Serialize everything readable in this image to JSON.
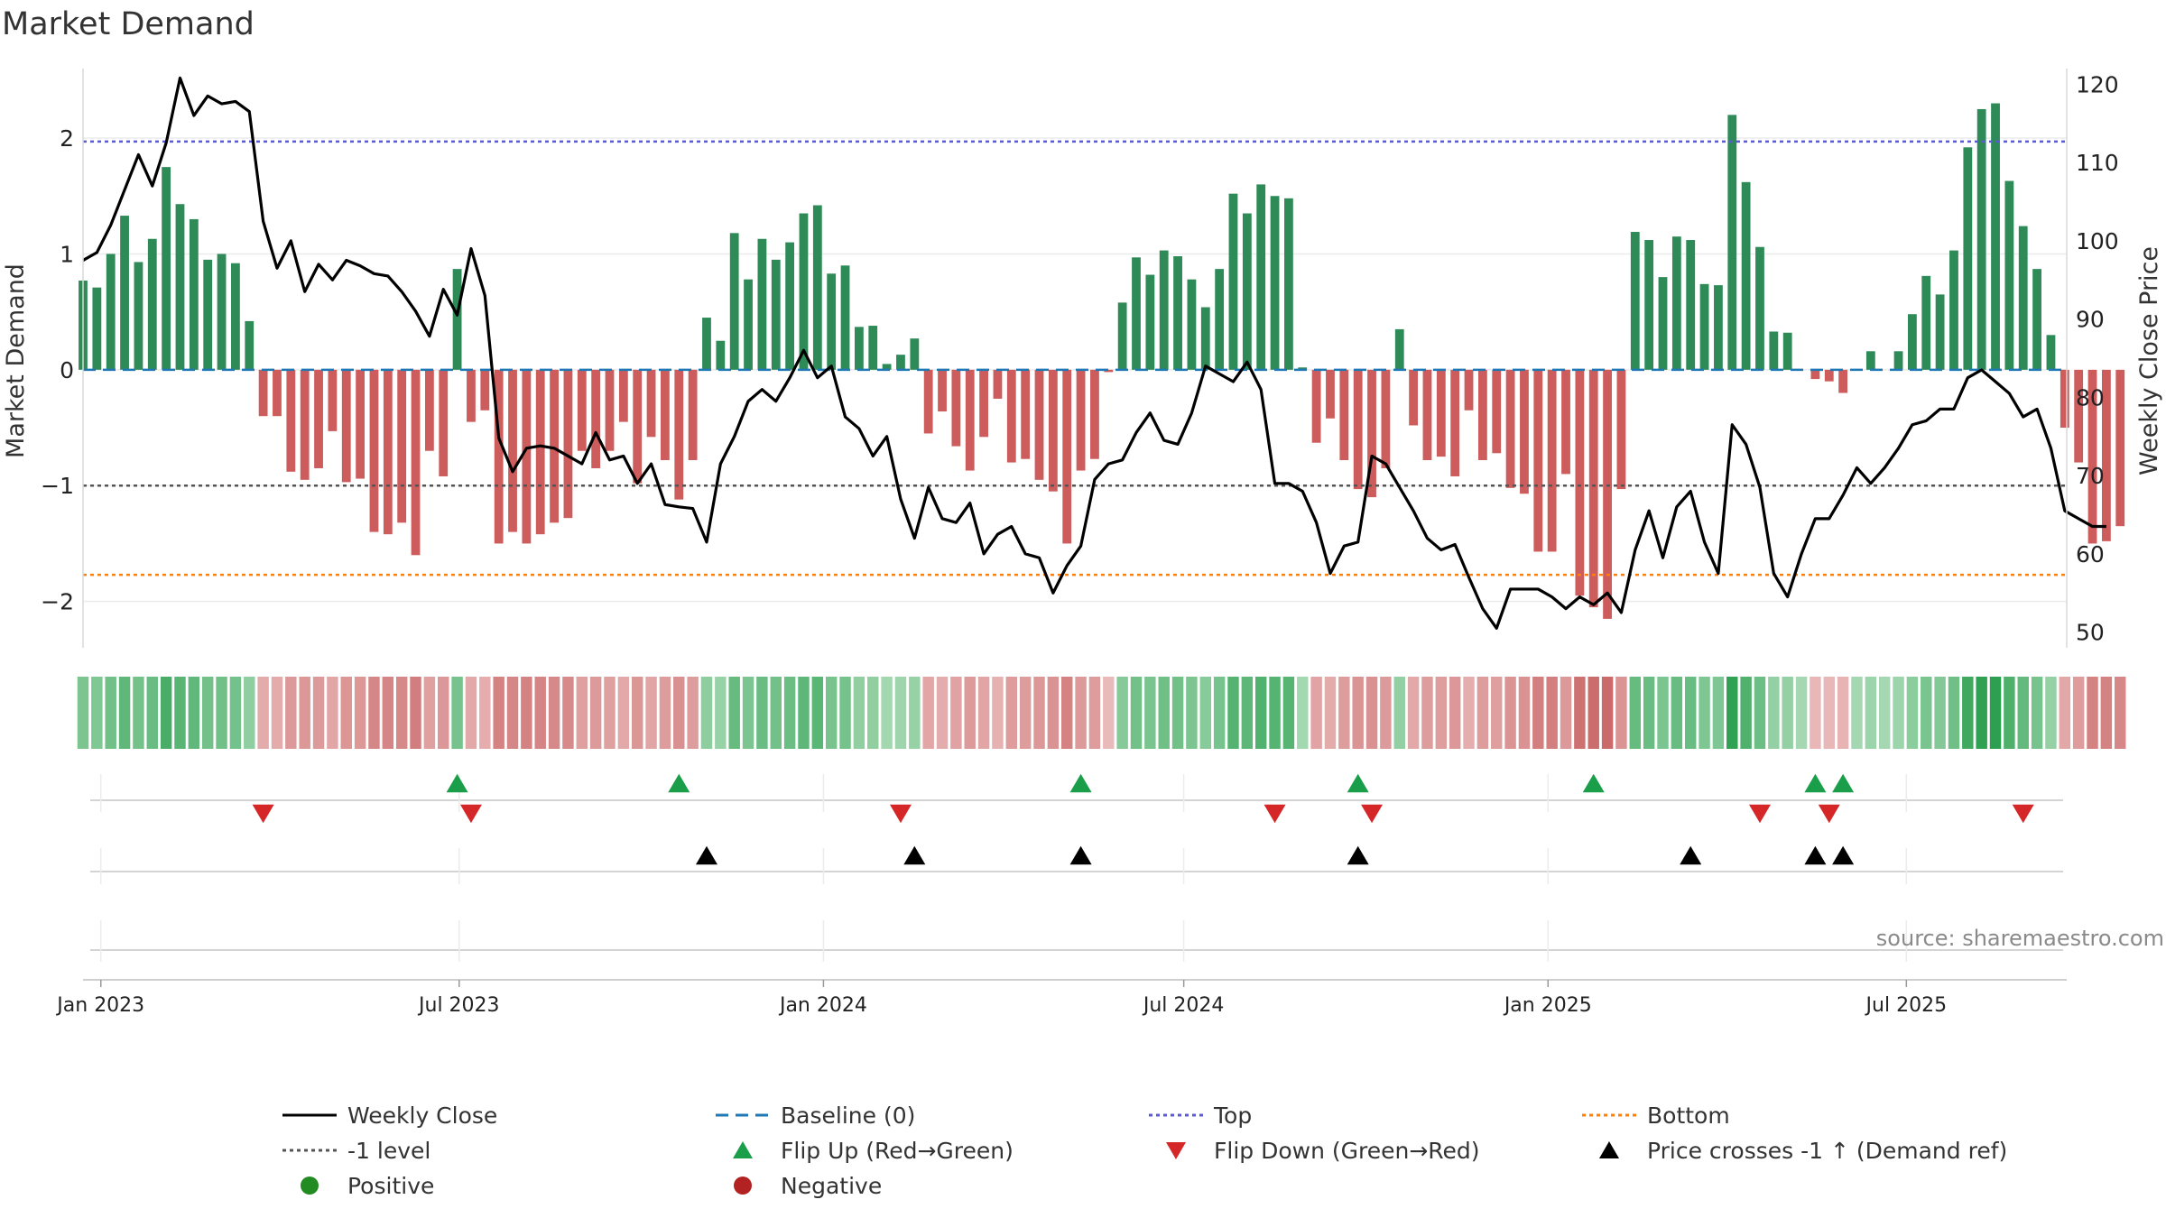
{
  "page_title": "Market Demand",
  "source": "source: sharemaestro.com",
  "colors": {
    "positive_bar": "#2e8b57",
    "negative_bar": "#cd5c5c",
    "close_line": "#000000",
    "baseline": "#1f77b4",
    "top_line": "#5b5bd6",
    "minus_one_line": "#555555",
    "bottom_line": "#ff7f0e",
    "flip_up": "#1a9e4a",
    "flip_down": "#d62728",
    "cross_marker": "#000000"
  },
  "chart_data": {
    "type": "bar",
    "title": "Market Demand",
    "ylabel": "Market Demand",
    "ylabel_right": "Weekly Close Price",
    "ylim": [
      -2.4,
      2.6
    ],
    "ylim_right": [
      48,
      122
    ],
    "y_ticks": [
      -2,
      -1,
      0,
      1,
      2
    ],
    "y_tick_labels": [
      "−2",
      "−1",
      "0",
      "1",
      "2"
    ],
    "y_ticks_right": [
      50,
      60,
      70,
      80,
      90,
      100,
      110,
      120
    ],
    "y_tick_labels_right": [
      "50",
      "60",
      "70",
      "80",
      "90",
      "100",
      "110",
      "120"
    ],
    "reference_lines": {
      "top": 1.97,
      "minus_one": -1.0,
      "bottom": -1.77,
      "baseline": 0
    },
    "x_start": "2022-12-23",
    "x_week_step": 7,
    "x_end": "2025-09-20",
    "x_tick_dates": [
      "2023-01-01",
      "2023-07-01",
      "2024-01-01",
      "2024-07-01",
      "2025-01-01",
      "2025-07-01"
    ],
    "x_tick_labels": [
      "Jan 2023",
      "Jul 2023",
      "Jan 2024",
      "Jul 2024",
      "Jan 2025",
      "Jul 2025"
    ],
    "demand": [
      0.77,
      0.71,
      1.0,
      1.33,
      0.93,
      1.13,
      1.75,
      1.43,
      1.3,
      0.95,
      1.0,
      0.92,
      0.42,
      -0.4,
      -0.4,
      -0.88,
      -0.95,
      -0.85,
      -0.53,
      -0.97,
      -0.94,
      -1.4,
      -1.42,
      -1.32,
      -1.6,
      -0.7,
      -0.92,
      0.87,
      -0.45,
      -0.35,
      -1.5,
      -1.4,
      -1.5,
      -1.42,
      -1.32,
      -1.28,
      -0.7,
      -0.85,
      -0.7,
      -0.45,
      -0.98,
      -0.58,
      -0.78,
      -1.12,
      -0.78,
      0.45,
      0.25,
      1.18,
      0.78,
      1.13,
      0.95,
      1.1,
      1.35,
      1.42,
      0.83,
      0.9,
      0.37,
      0.38,
      0.05,
      0.13,
      0.27,
      -0.55,
      -0.36,
      -0.66,
      -0.87,
      -0.58,
      -0.25,
      -0.8,
      -0.77,
      -0.95,
      -1.05,
      -1.5,
      -0.87,
      -0.77,
      -0.02,
      0.58,
      0.97,
      0.82,
      1.03,
      0.98,
      0.78,
      0.54,
      0.87,
      1.52,
      1.35,
      1.6,
      1.5,
      1.48,
      0.02,
      -0.63,
      -0.42,
      -0.78,
      -1.03,
      -1.1,
      -0.85,
      0.35,
      -0.48,
      -0.78,
      -0.75,
      -0.92,
      -0.35,
      -0.78,
      -0.72,
      -1.02,
      -1.07,
      -1.57,
      -1.57,
      -0.9,
      -1.95,
      -2.05,
      -2.15,
      -1.03,
      1.19,
      1.12,
      0.8,
      1.15,
      1.12,
      0.74,
      0.73,
      2.2,
      1.62,
      1.06,
      0.33,
      0.32,
      0.0,
      -0.08,
      -0.1,
      -0.2,
      0.0,
      0.16,
      0.0,
      0.16,
      0.48,
      0.81,
      0.65,
      1.03,
      1.92,
      2.25,
      2.3,
      1.63,
      1.24,
      0.87,
      0.3,
      -0.5,
      -0.8,
      -1.5,
      -1.48,
      -1.35
    ],
    "weekly_close": [
      97.5,
      98.5,
      102.0,
      106.5,
      111.0,
      107.0,
      112.5,
      120.8,
      116.0,
      118.5,
      117.5,
      117.8,
      116.5,
      102.5,
      96.5,
      100.0,
      93.5,
      97.0,
      95.0,
      97.5,
      96.8,
      95.8,
      95.5,
      93.5,
      91.0,
      87.8,
      93.8,
      90.5,
      99.0,
      93.0,
      74.8,
      70.5,
      73.5,
      73.8,
      73.5,
      72.5,
      71.5,
      75.5,
      72.0,
      72.5,
      69.0,
      71.5,
      66.3,
      66.0,
      65.8,
      61.5,
      71.5,
      75.0,
      79.5,
      81.0,
      79.5,
      82.5,
      86.0,
      82.5,
      84.0,
      77.5,
      76.0,
      72.5,
      75.0,
      67.0,
      62.0,
      68.5,
      64.5,
      64.0,
      66.5,
      60.0,
      62.5,
      63.5,
      60.0,
      59.5,
      55.0,
      58.5,
      61.0,
      69.5,
      71.5,
      72.0,
      75.5,
      78.0,
      74.5,
      74.0,
      78.0,
      84.0,
      83.0,
      82.0,
      84.5,
      81.0,
      69.0,
      69.0,
      68.0,
      64.0,
      57.5,
      61.0,
      61.5,
      72.5,
      71.5,
      68.5,
      65.5,
      62.0,
      60.5,
      61.2,
      57.0,
      53.0,
      50.5,
      55.5,
      55.5,
      55.5,
      54.5,
      53.0,
      54.5,
      53.5,
      55.0,
      52.5,
      60.5,
      65.5,
      59.5,
      66.0,
      68.0,
      61.5,
      57.5,
      76.5,
      74.0,
      68.5,
      57.5,
      54.5,
      60.0,
      64.5,
      64.5,
      67.5,
      71.0,
      69.0,
      71.0,
      73.5,
      76.5,
      77.0,
      78.5,
      78.5,
      82.5,
      83.5,
      82.0,
      80.5,
      77.5,
      78.5,
      73.5,
      65.5,
      64.5,
      63.5,
      63.5
    ],
    "strip_label": "demand intensity strip (colour scale of Market Demand)",
    "flip_up_indices": [
      27,
      43,
      72,
      92,
      109,
      125,
      127
    ],
    "flip_down_indices": [
      13,
      28,
      59,
      86,
      93,
      121,
      126,
      140
    ],
    "cross_indices": [
      45,
      60,
      72,
      92,
      116,
      125,
      127
    ]
  },
  "legend": {
    "items": [
      {
        "label": "Weekly Close",
        "type": "line-solid",
        "color": "#000000"
      },
      {
        "label": "Baseline (0)",
        "type": "line-dash",
        "color": "#1f77b4"
      },
      {
        "label": "Top",
        "type": "line-dot",
        "color": "#5b5bd6"
      },
      {
        "label": "Bottom",
        "type": "line-dot",
        "color": "#ff7f0e"
      },
      {
        "label": "-1 level",
        "type": "line-dot",
        "color": "#555555"
      },
      {
        "label": "Flip Up (Red→Green)",
        "type": "triangle-up",
        "color": "#1a9e4a"
      },
      {
        "label": "Flip Down (Green→Red)",
        "type": "triangle-down",
        "color": "#d62728"
      },
      {
        "label": "Price crosses -1 ↑ (Demand ref)",
        "type": "triangle-up",
        "color": "#000000"
      },
      {
        "label": "Positive",
        "type": "circle",
        "color": "#228b22"
      },
      {
        "label": "Negative",
        "type": "circle",
        "color": "#b22222"
      }
    ]
  }
}
